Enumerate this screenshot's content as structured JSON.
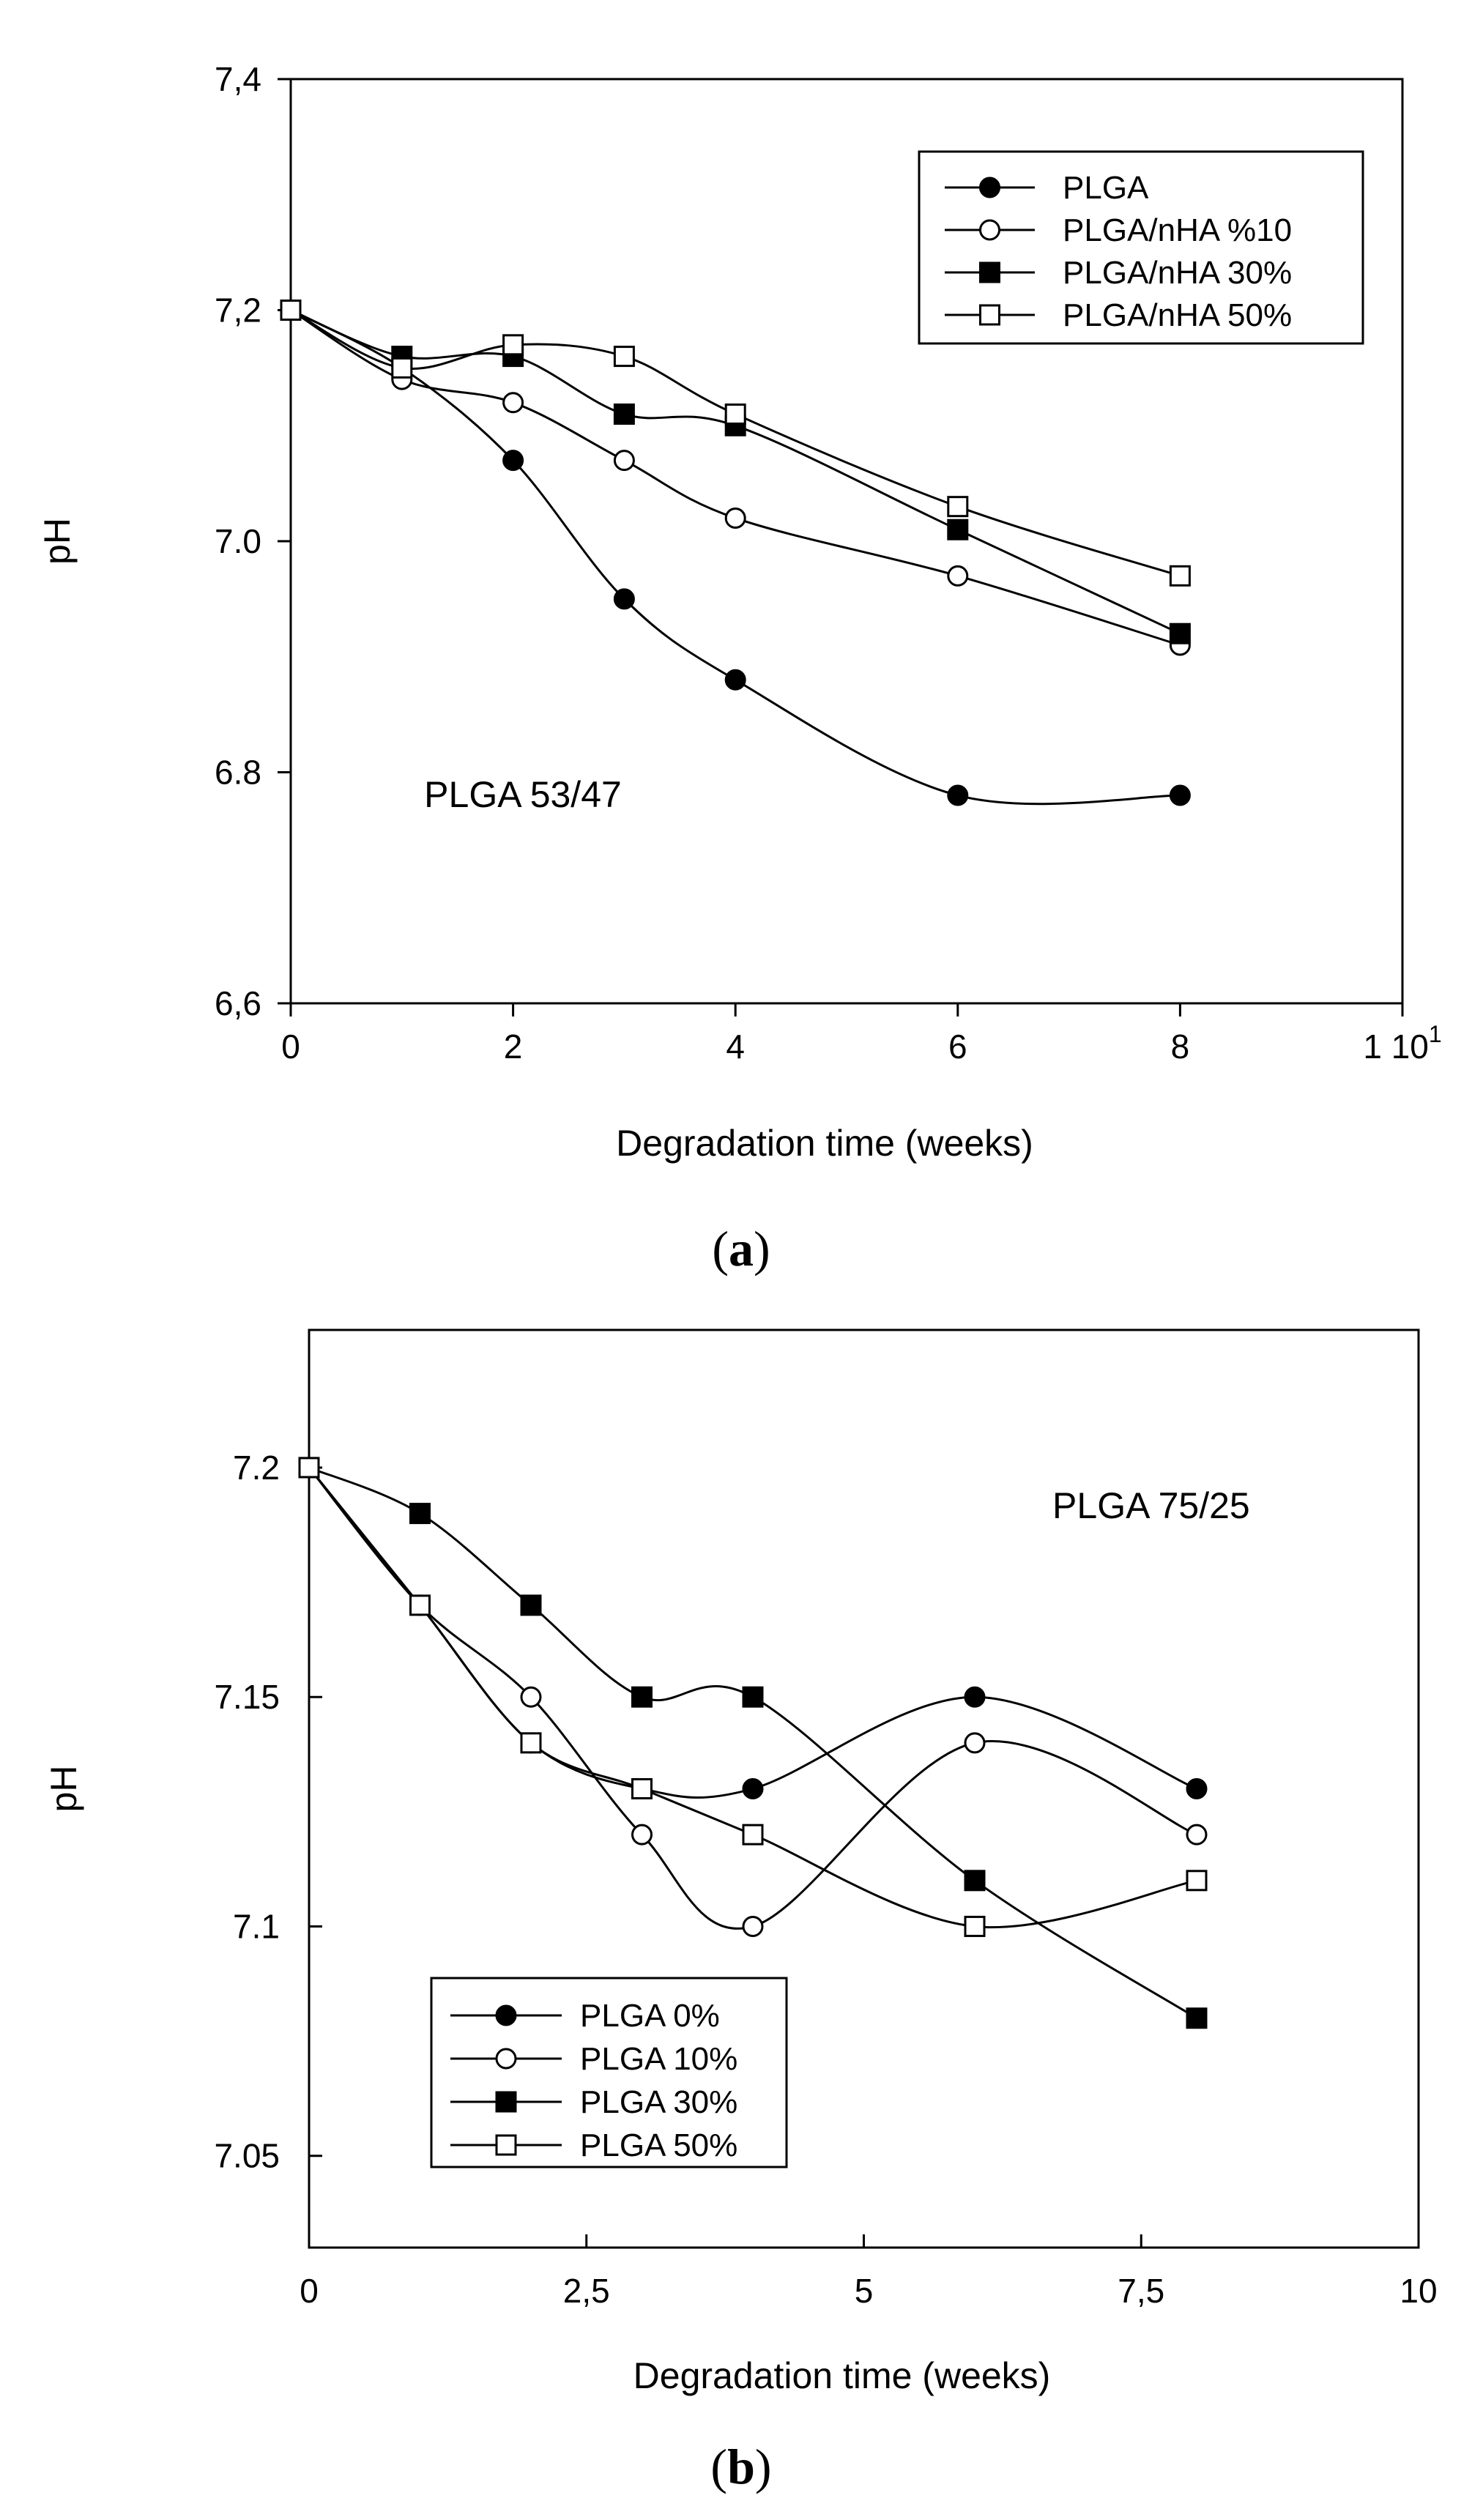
{
  "chart_data": [
    {
      "type": "line",
      "panel_label": "a",
      "xlabel": "Degradation time (weeks)",
      "ylabel": "pH",
      "xlim": [
        0,
        10
      ],
      "ylim": [
        6.6,
        7.4
      ],
      "x_ticks": [
        {
          "value": 0,
          "label": "0"
        },
        {
          "value": 2,
          "label": "2"
        },
        {
          "value": 4,
          "label": "4"
        },
        {
          "value": 6,
          "label": "6"
        },
        {
          "value": 8,
          "label": "8"
        },
        {
          "value": 10,
          "label": "1 10",
          "sup": "1"
        }
      ],
      "y_ticks": [
        {
          "value": 6.6,
          "label": "6,6"
        },
        {
          "value": 6.8,
          "label": "6.8"
        },
        {
          "value": 7.0,
          "label": "7.0"
        },
        {
          "value": 7.2,
          "label": "7,2"
        },
        {
          "value": 7.4,
          "label": "7,4"
        }
      ],
      "annotation": {
        "text": "PLGA 53/47",
        "x": 1.2,
        "y": 6.77
      },
      "legend": {
        "position": "top-right"
      },
      "series": [
        {
          "name": "PLGA",
          "marker": "filled-circle",
          "x": [
            0,
            1,
            2,
            3,
            4,
            6,
            8
          ],
          "y": [
            7.2,
            7.15,
            7.07,
            6.95,
            6.88,
            6.78,
            6.78
          ]
        },
        {
          "name": "PLGA/nHA %10",
          "marker": "open-circle",
          "x": [
            0,
            1,
            2,
            3,
            4,
            6,
            8
          ],
          "y": [
            7.2,
            7.14,
            7.12,
            7.07,
            7.02,
            6.97,
            6.91
          ]
        },
        {
          "name": "PLGA/nHA 30%",
          "marker": "filled-square",
          "x": [
            0,
            1,
            2,
            3,
            4,
            6,
            8
          ],
          "y": [
            7.2,
            7.16,
            7.16,
            7.11,
            7.1,
            7.01,
            6.92
          ]
        },
        {
          "name": "PLGA/nHA 50%",
          "marker": "open-square",
          "x": [
            0,
            1,
            2,
            3,
            4,
            6,
            8
          ],
          "y": [
            7.2,
            7.15,
            7.17,
            7.16,
            7.11,
            7.03,
            6.97
          ]
        }
      ]
    },
    {
      "type": "line",
      "panel_label": "b",
      "xlabel": "Degradation time (weeks)",
      "ylabel": "pH",
      "xlim": [
        0,
        10
      ],
      "ylim": [
        7.03,
        7.23
      ],
      "x_ticks": [
        {
          "value": 0,
          "label": "0"
        },
        {
          "value": 2.5,
          "label": "2,5"
        },
        {
          "value": 5,
          "label": "5"
        },
        {
          "value": 7.5,
          "label": "7,5"
        },
        {
          "value": 10,
          "label": "10"
        }
      ],
      "y_ticks": [
        {
          "value": 7.05,
          "label": "7.05"
        },
        {
          "value": 7.1,
          "label": "7.1"
        },
        {
          "value": 7.15,
          "label": "7.15"
        },
        {
          "value": 7.2,
          "label": "7.2"
        }
      ],
      "annotation": {
        "text": "PLGA 75/25",
        "x": 6.7,
        "y": 7.189
      },
      "legend": {
        "position": "bottom-left"
      },
      "series": [
        {
          "name": "PLGA 0%",
          "marker": "filled-circle",
          "x": [
            0,
            1,
            2,
            3,
            4,
            6,
            8
          ],
          "y": [
            7.2,
            7.17,
            7.14,
            7.13,
            7.13,
            7.15,
            7.13
          ]
        },
        {
          "name": "PLGA 10%",
          "marker": "open-circle",
          "x": [
            0,
            1,
            2,
            3,
            4,
            6,
            8
          ],
          "y": [
            7.2,
            7.17,
            7.15,
            7.12,
            7.1,
            7.14,
            7.12
          ]
        },
        {
          "name": "PLGA 30%",
          "marker": "filled-square",
          "x": [
            0,
            1,
            2,
            3,
            4,
            6,
            8
          ],
          "y": [
            7.2,
            7.19,
            7.17,
            7.15,
            7.15,
            7.11,
            7.08
          ]
        },
        {
          "name": "PLGA 50%",
          "marker": "open-square",
          "x": [
            0,
            1,
            2,
            3,
            4,
            6,
            8
          ],
          "y": [
            7.2,
            7.17,
            7.14,
            7.13,
            7.12,
            7.1,
            7.11
          ]
        }
      ]
    }
  ]
}
